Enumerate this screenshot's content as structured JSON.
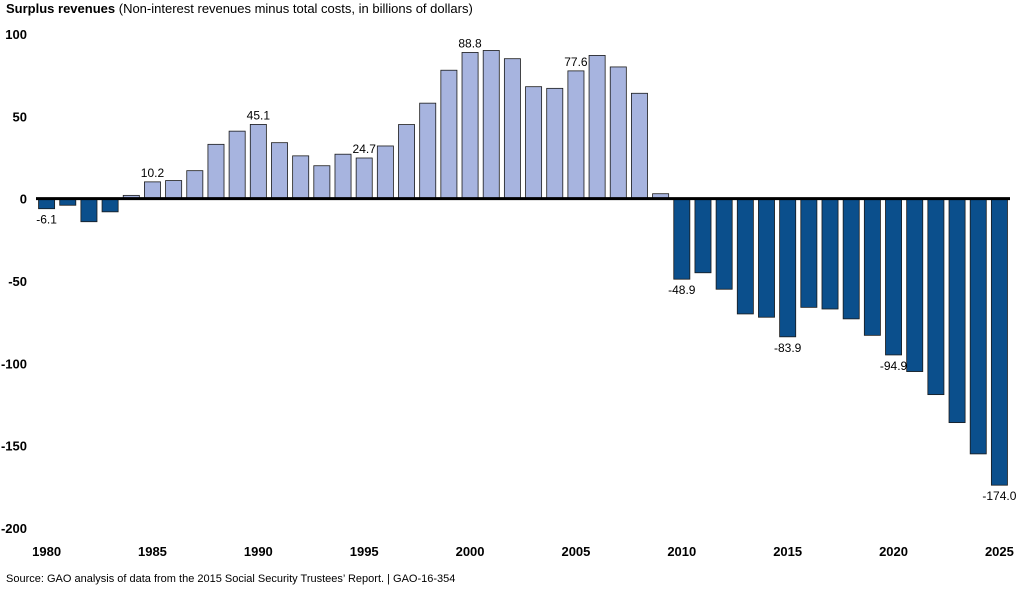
{
  "header": {
    "title": "Surplus revenues",
    "subtitle": "(Non-interest revenues minus total costs, in billions of dollars)"
  },
  "footer": {
    "source": "Source: GAO analysis of data from the 2015 Social Security Trustees’ Report.  |  GAO-16-354"
  },
  "colors": {
    "positive": "#a7b4df",
    "negative": "#0b4f8c",
    "outline": "#1a1a1a",
    "zero_line": "#000000"
  },
  "chart_data": {
    "type": "bar",
    "title": "Surplus revenues",
    "subtitle": "(Non-interest revenues minus total costs, in billions of dollars)",
    "xlabel": "",
    "ylabel": "",
    "ylim": [
      -200,
      100
    ],
    "grid": false,
    "y_ticks": [
      100,
      50,
      0,
      -50,
      -100,
      -150,
      -200
    ],
    "x_ticks": [
      1980,
      1985,
      1990,
      1995,
      2000,
      2005,
      2010,
      2015,
      2020,
      2025
    ],
    "categories": [
      1980,
      1981,
      1982,
      1983,
      1984,
      1985,
      1986,
      1987,
      1988,
      1989,
      1990,
      1991,
      1992,
      1993,
      1994,
      1995,
      1996,
      1997,
      1998,
      1999,
      2000,
      2001,
      2002,
      2003,
      2004,
      2005,
      2006,
      2007,
      2008,
      2009,
      2010,
      2011,
      2012,
      2013,
      2014,
      2015,
      2016,
      2017,
      2018,
      2019,
      2020,
      2021,
      2022,
      2023,
      2024,
      2025
    ],
    "values": [
      -6.1,
      -4,
      -14,
      -8,
      2,
      10.2,
      11,
      17,
      33,
      41,
      45.1,
      34,
      26,
      20,
      27,
      24.7,
      32,
      45,
      58,
      78,
      88.8,
      90,
      85,
      68,
      67,
      77.6,
      87,
      80,
      64,
      3,
      -48.9,
      -45,
      -55,
      -70,
      -72,
      -83.9,
      -66,
      -67,
      -73,
      -83,
      -94.9,
      -105,
      -119,
      -136,
      -155,
      -174
    ],
    "data_labels": [
      {
        "x": 1980,
        "text": "-6.1"
      },
      {
        "x": 1985,
        "text": "10.2"
      },
      {
        "x": 1990,
        "text": "45.1"
      },
      {
        "x": 1995,
        "text": "24.7"
      },
      {
        "x": 2000,
        "text": "88.8"
      },
      {
        "x": 2005,
        "text": "77.6"
      },
      {
        "x": 2010,
        "text": "-48.9"
      },
      {
        "x": 2015,
        "text": "-83.9"
      },
      {
        "x": 2020,
        "text": "-94.9"
      },
      {
        "x": 2025,
        "text": "-174.0"
      }
    ]
  }
}
